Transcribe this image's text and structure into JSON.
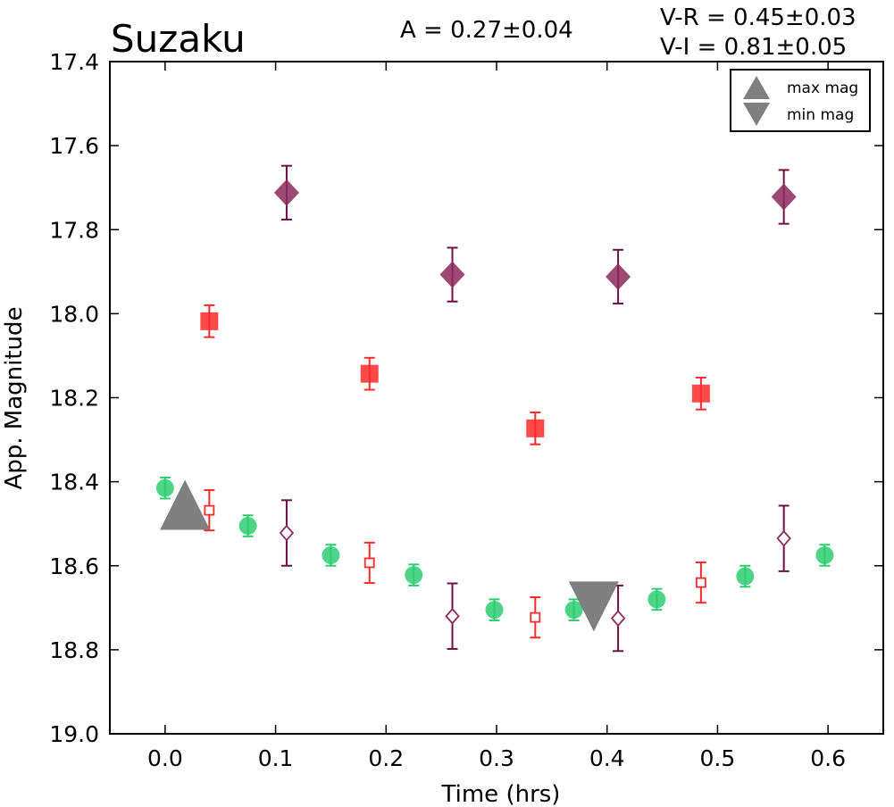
{
  "chart_data": {
    "type": "scatter",
    "title": "Suzaku",
    "amplitude_label": "A  = 0.27±0.04",
    "color_labels": [
      "V-R = 0.45±0.03",
      "V-I  = 0.81±0.05"
    ],
    "xlabel": "Time (hrs)",
    "ylabel": "App. Magnitude",
    "xlim": [
      -0.05,
      0.65
    ],
    "ylim": [
      19.0,
      17.4
    ],
    "y_inverted": true,
    "xticks": [
      "0.0",
      "0.1",
      "0.2",
      "0.3",
      "0.4",
      "0.5",
      "0.6"
    ],
    "yticks": [
      "17.4",
      "17.6",
      "17.8",
      "18.0",
      "18.2",
      "18.4",
      "18.6",
      "18.8",
      "19.0"
    ],
    "grid": false,
    "legend_position": "top-right",
    "legend": [
      {
        "label": "max mag",
        "marker": "triangle-up"
      },
      {
        "label": "min mag",
        "marker": "triangle-down"
      }
    ],
    "colors": {
      "green": "#2ecc71",
      "red": "#ff2a2a",
      "purple": "#8b2a5c",
      "purple_err": "#6e0f45",
      "gray": "#7f7f7f"
    },
    "series": [
      {
        "marker": "circle",
        "color": "green",
        "fill": true,
        "x": [
          0.0,
          0.075,
          0.15,
          0.225,
          0.298,
          0.37,
          0.445,
          0.525,
          0.597
        ],
        "y": [
          18.415,
          18.505,
          18.575,
          18.622,
          18.705,
          18.705,
          18.68,
          18.625,
          18.575
        ],
        "err": [
          0.025,
          0.025,
          0.025,
          0.025,
          0.025,
          0.025,
          0.025,
          0.025,
          0.025
        ]
      },
      {
        "marker": "square",
        "color": "red",
        "fill": true,
        "x": [
          0.04,
          0.185,
          0.335,
          0.485
        ],
        "y": [
          18.018,
          18.143,
          18.273,
          18.19
        ],
        "err": [
          0.038,
          0.038,
          0.038,
          0.038
        ]
      },
      {
        "marker": "square",
        "color": "red",
        "fill": false,
        "x": [
          0.04,
          0.185,
          0.335,
          0.485
        ],
        "y": [
          18.468,
          18.593,
          18.723,
          18.64
        ],
        "err": [
          0.048,
          0.048,
          0.048,
          0.048
        ]
      },
      {
        "marker": "diamond",
        "color": "purple",
        "fill": true,
        "x": [
          0.11,
          0.26,
          0.41,
          0.56
        ],
        "y": [
          17.712,
          17.907,
          17.912,
          17.722
        ],
        "err": [
          0.064,
          0.064,
          0.064,
          0.064
        ]
      },
      {
        "marker": "diamond",
        "color": "purple",
        "fill": false,
        "x": [
          0.11,
          0.26,
          0.41,
          0.56
        ],
        "y": [
          18.522,
          18.72,
          18.725,
          18.535
        ],
        "err": [
          0.078,
          0.078,
          0.078,
          0.078
        ]
      }
    ],
    "extrema": [
      {
        "label": "max mag",
        "marker": "triangle-up",
        "x": 0.018,
        "y": 18.455
      },
      {
        "label": "min mag",
        "marker": "triangle-down",
        "x": 0.388,
        "y": 18.697
      }
    ]
  }
}
